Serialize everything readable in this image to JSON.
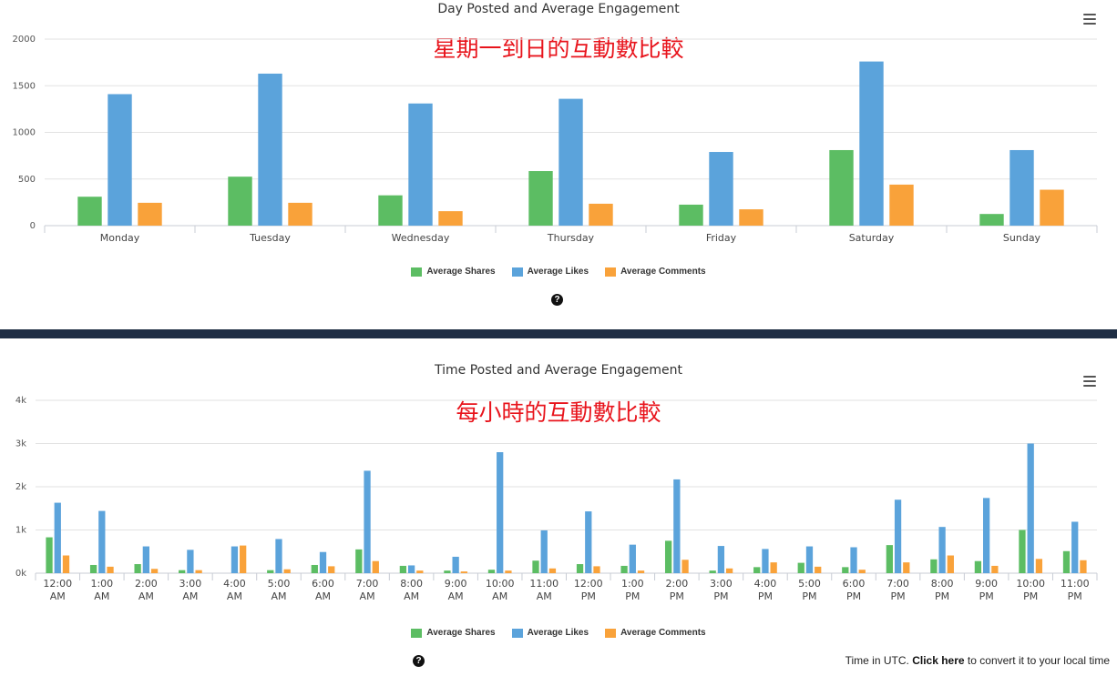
{
  "colors": {
    "shares": "#5cbd63",
    "likes": "#5ba3db",
    "comments": "#f9a23a",
    "divider": "#1f2e44",
    "annotation": "#e8141c"
  },
  "charts": {
    "day": {
      "title": "Day Posted and Average Engagement",
      "annotation": "星期一到日的互動數比較",
      "legend": [
        "Average Shares",
        "Average Likes",
        "Average Comments"
      ]
    },
    "time": {
      "title": "Time Posted and Average Engagement",
      "annotation": "每小時的互動數比較",
      "legend": [
        "Average Shares",
        "Average Likes",
        "Average Comments"
      ]
    }
  },
  "footer": {
    "prefix": "Time in UTC.",
    "link": "Click here",
    "suffix": "to convert it to your local time"
  },
  "chart_data": [
    {
      "type": "bar",
      "title": "Day Posted and Average Engagement",
      "categories": [
        "Monday",
        "Tuesday",
        "Wednesday",
        "Thursday",
        "Friday",
        "Saturday",
        "Sunday"
      ],
      "series": [
        {
          "name": "Average Shares",
          "values": [
            310,
            525,
            325,
            585,
            225,
            810,
            125
          ]
        },
        {
          "name": "Average Likes",
          "values": [
            1410,
            1630,
            1310,
            1360,
            790,
            1760,
            810
          ]
        },
        {
          "name": "Average Comments",
          "values": [
            245,
            245,
            155,
            235,
            175,
            440,
            385
          ]
        }
      ],
      "ylim": [
        0,
        2000
      ],
      "yticks": [
        "0",
        "500",
        "1000",
        "1500",
        "2000"
      ],
      "grid": true,
      "legend_position": "bottom"
    },
    {
      "type": "bar",
      "title": "Time Posted and Average Engagement",
      "categories": [
        "12:00 AM",
        "1:00 AM",
        "2:00 AM",
        "3:00 AM",
        "4:00 AM",
        "5:00 AM",
        "6:00 AM",
        "7:00 AM",
        "8:00 AM",
        "9:00 AM",
        "10:00 AM",
        "11:00 AM",
        "12:00 PM",
        "1:00 PM",
        "2:00 PM",
        "3:00 PM",
        "4:00 PM",
        "5:00 PM",
        "6:00 PM",
        "7:00 PM",
        "8:00 PM",
        "9:00 PM",
        "10:00 PM",
        "11:00 PM"
      ],
      "series": [
        {
          "name": "Average Shares",
          "values": [
            830,
            190,
            210,
            70,
            0,
            70,
            190,
            550,
            170,
            60,
            80,
            290,
            210,
            170,
            750,
            60,
            140,
            240,
            140,
            650,
            320,
            280,
            1000,
            510
          ]
        },
        {
          "name": "Average Likes",
          "values": [
            1630,
            1440,
            620,
            540,
            620,
            790,
            490,
            2370,
            180,
            380,
            2800,
            990,
            1430,
            660,
            2170,
            630,
            560,
            620,
            600,
            1700,
            1070,
            1740,
            3000,
            1190
          ]
        },
        {
          "name": "Average Comments",
          "values": [
            410,
            150,
            100,
            70,
            640,
            90,
            160,
            280,
            60,
            40,
            60,
            110,
            160,
            60,
            310,
            110,
            250,
            150,
            80,
            250,
            410,
            170,
            330,
            300
          ]
        }
      ],
      "ylim": [
        0,
        4000
      ],
      "yticks": [
        "0k",
        "1k",
        "2k",
        "3k",
        "4k"
      ],
      "grid": true,
      "legend_position": "bottom"
    }
  ]
}
